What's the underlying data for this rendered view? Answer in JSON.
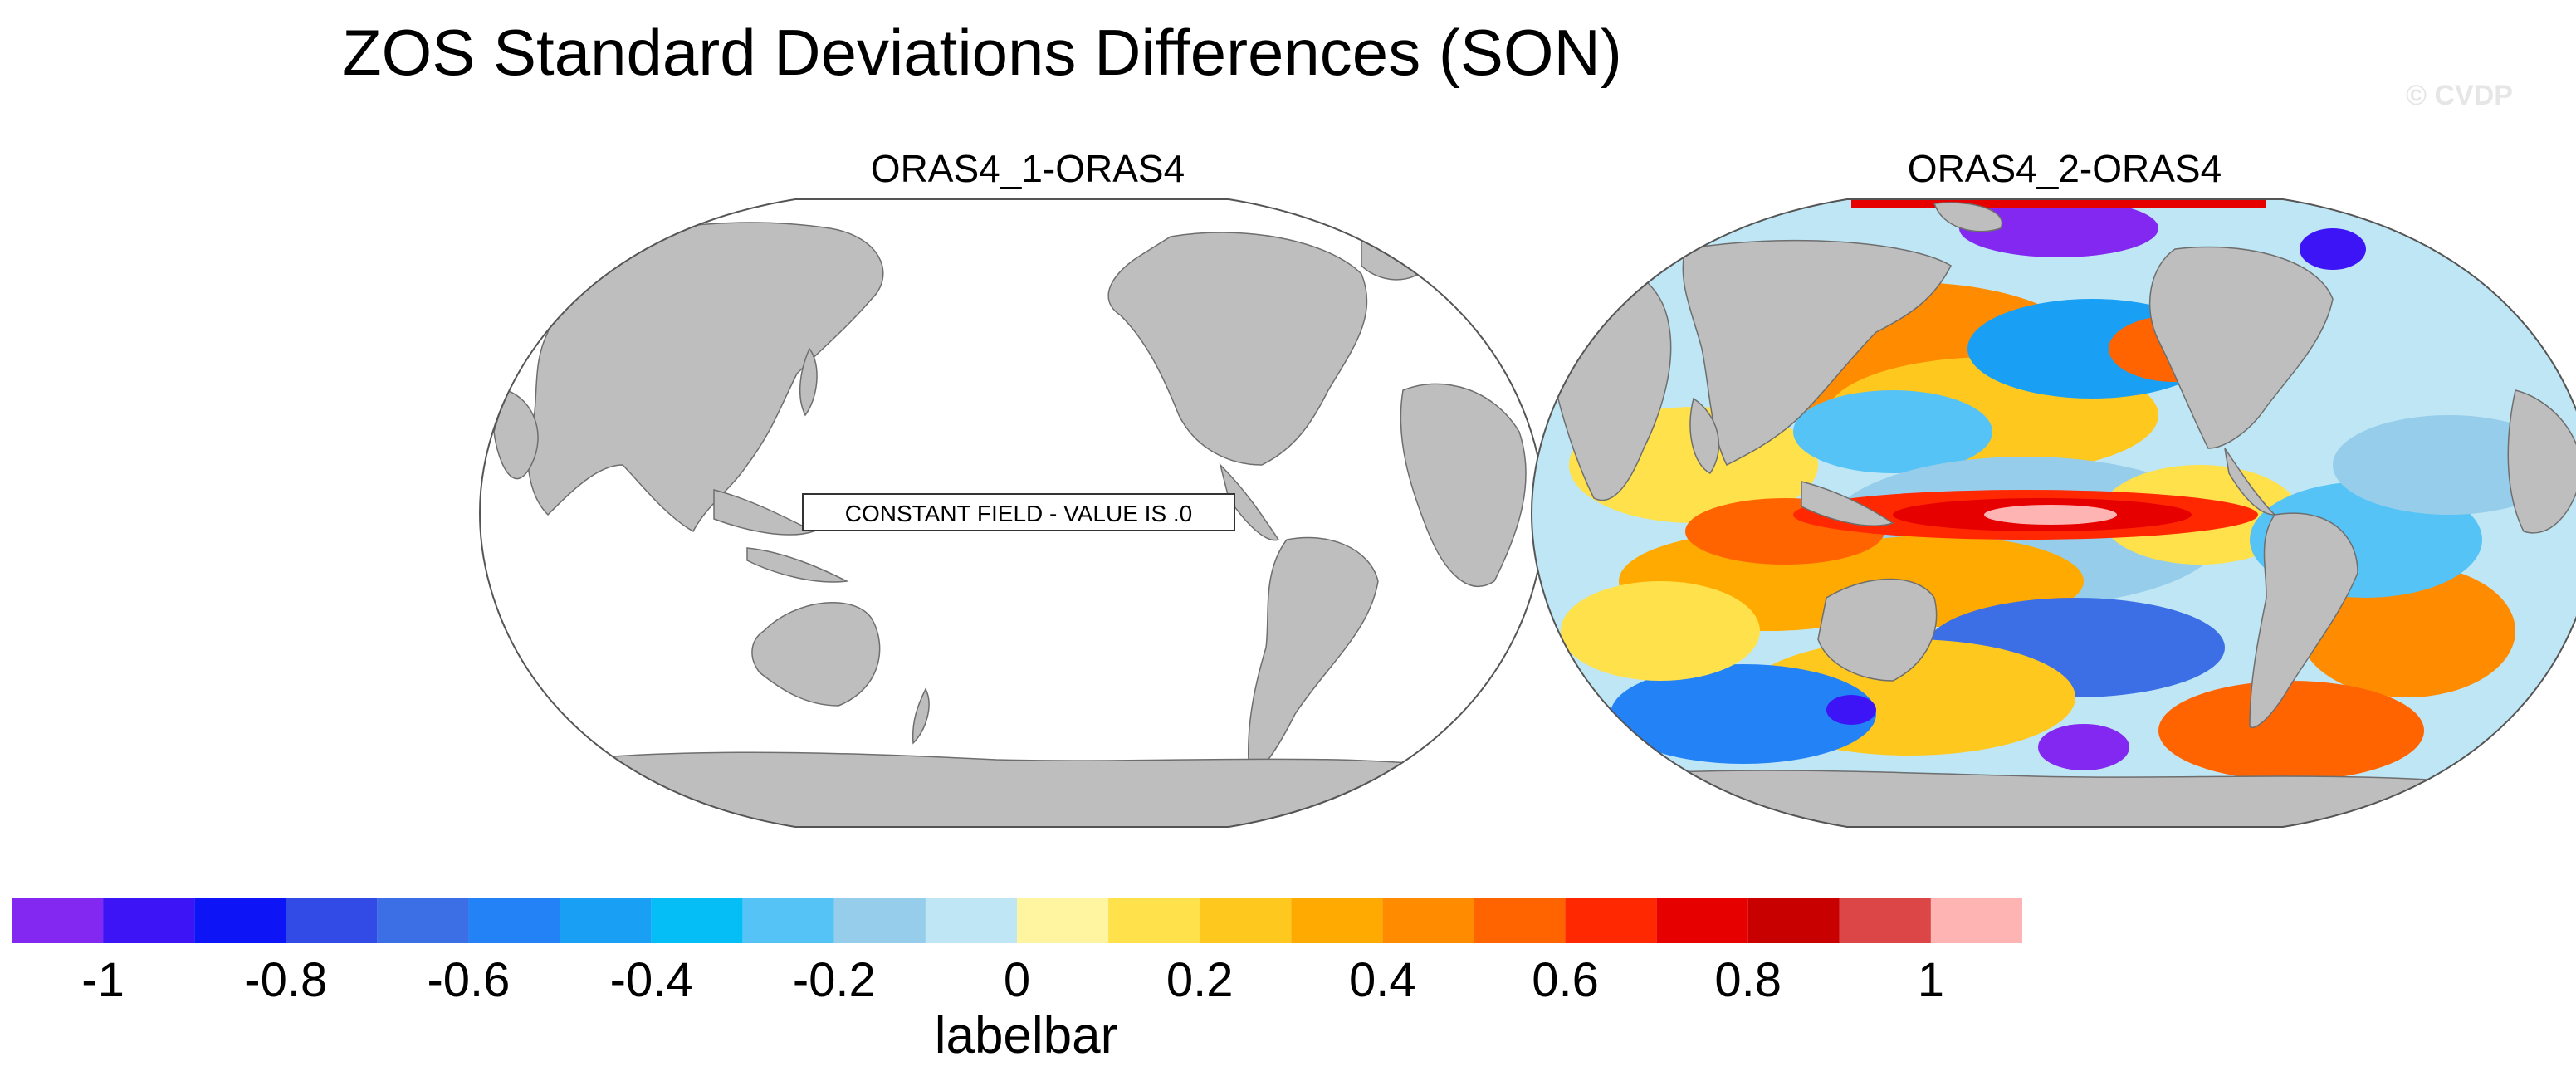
{
  "page_title": "ZOS Standard Deviations Differences (SON)",
  "watermark": "© CVDP",
  "chart_data": [
    {
      "type": "map",
      "projection": "Robinson",
      "title": "ORAS4_1-ORAS4",
      "field": "ZOS standard deviation difference",
      "constant_field": true,
      "constant_value": 0.0,
      "annotation": "CONSTANT FIELD - VALUE IS .0"
    },
    {
      "type": "map",
      "projection": "Robinson",
      "title": "ORAS4_2-ORAS4",
      "field": "ZOS standard deviation difference",
      "constant_field": false,
      "value_range": [
        -1.1,
        1.1
      ]
    }
  ],
  "colorbar": {
    "label": "labelbar",
    "levels": [
      -1.1,
      -1.0,
      -0.9,
      -0.8,
      -0.7,
      -0.6,
      -0.5,
      -0.4,
      -0.3,
      -0.2,
      -0.1,
      0.0,
      0.1,
      0.2,
      0.3,
      0.4,
      0.5,
      0.6,
      0.7,
      0.8,
      0.9,
      1.0,
      1.1
    ],
    "colors": [
      "#8228f0",
      "#3d14f5",
      "#0d14f5",
      "#324be6",
      "#3c6ee6",
      "#2382f5",
      "#19a0f5",
      "#05bef5",
      "#55c3f5",
      "#96cdeb",
      "#bee6f5",
      "#fff5a0",
      "#ffe14b",
      "#ffc81e",
      "#ffaa00",
      "#ff8c00",
      "#ff6400",
      "#ff2800",
      "#e60000",
      "#c80000",
      "#dc4646",
      "#ffb4b4"
    ],
    "tick_labels": [
      "-1",
      "-0.8",
      "-0.6",
      "-0.4",
      "-0.2",
      "0",
      "0.2",
      "0.4",
      "0.6",
      "0.8",
      "1"
    ],
    "tick_values": [
      -1.0,
      -0.8,
      -0.6,
      -0.4,
      -0.2,
      0.0,
      0.2,
      0.4,
      0.6,
      0.8,
      1.0
    ]
  },
  "map_colors": {
    "land": "#bebebe",
    "ocean_constant": "#ffffff",
    "outline": "#555555"
  }
}
